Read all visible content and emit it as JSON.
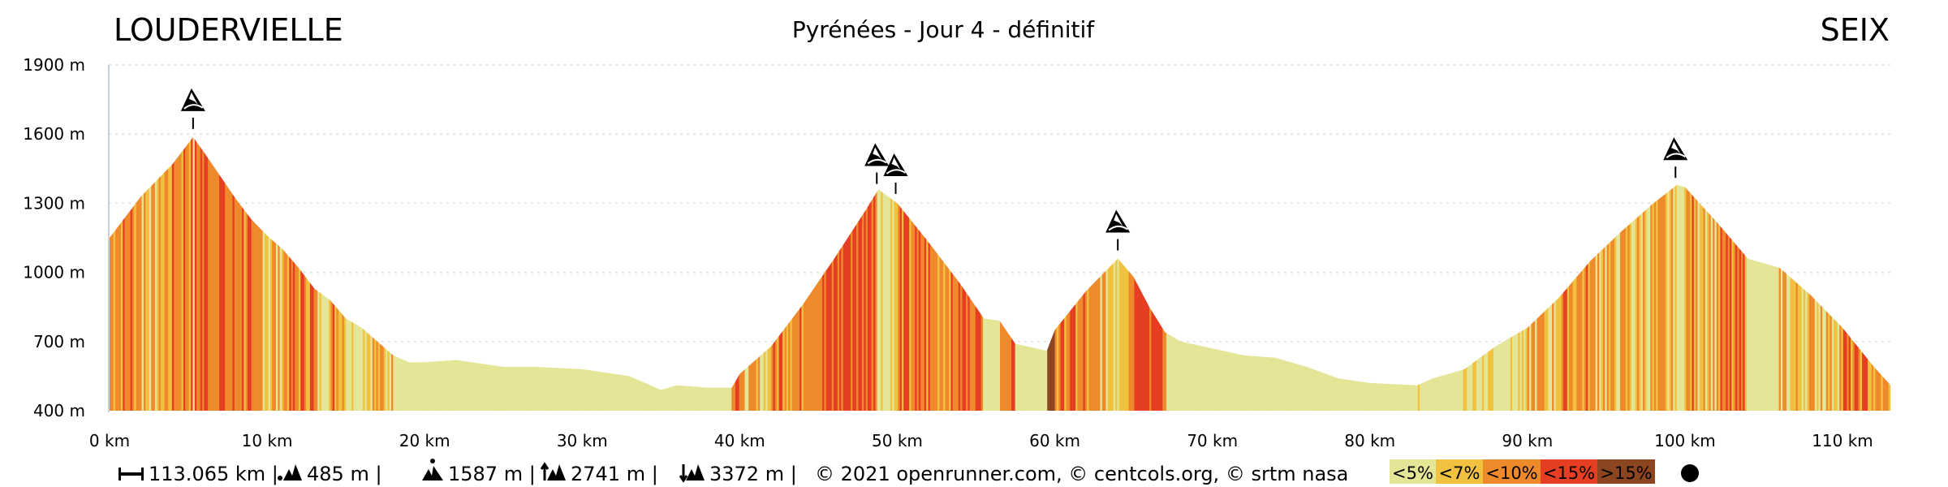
{
  "header": {
    "start": "LOUDERVIELLE",
    "title": "Pyrénées - Jour 4 - définitif",
    "end": "SEIX"
  },
  "footer": {
    "distance": "113.065 km |",
    "min_alt": "485 m |",
    "max_alt": "1587 m |",
    "ascent": "2741 m |",
    "descent": "3372 m |",
    "credits": "© 2021 openrunner.com, © centcols.org, © srtm nasa"
  },
  "legend": [
    {
      "label": "<5%",
      "color": "#e5e597"
    },
    {
      "label": "<7%",
      "color": "#f0c23f"
    },
    {
      "label": "<10%",
      "color": "#ee8a2c"
    },
    {
      "label": "<15%",
      "color": "#e53e22"
    },
    {
      "label": ">15%",
      "color": "#8b4520"
    }
  ],
  "chart_data": {
    "type": "area",
    "title": "Pyrénées - Jour 4 - définitif",
    "xlabel": "",
    "ylabel": "",
    "xlim": [
      0,
      113.065
    ],
    "ylim": [
      400,
      1900
    ],
    "x_ticks": [
      "0 km",
      "10 km",
      "20 km",
      "30 km",
      "40 km",
      "50 km",
      "60 km",
      "70 km",
      "80 km",
      "90 km",
      "100 km",
      "110 km"
    ],
    "y_ticks": [
      "400 m",
      "700 m",
      "1000 m",
      "1300 m",
      "1600 m",
      "1900 m"
    ],
    "grid": true,
    "points": [
      [
        0,
        1150
      ],
      [
        1,
        1240
      ],
      [
        2,
        1330
      ],
      [
        3,
        1400
      ],
      [
        4,
        1470
      ],
      [
        5.3,
        1587
      ],
      [
        6,
        1520
      ],
      [
        7,
        1420
      ],
      [
        8,
        1320
      ],
      [
        9,
        1230
      ],
      [
        10,
        1160
      ],
      [
        11,
        1100
      ],
      [
        12,
        1020
      ],
      [
        13,
        930
      ],
      [
        14,
        880
      ],
      [
        15,
        800
      ],
      [
        16,
        760
      ],
      [
        17,
        700
      ],
      [
        18,
        640
      ],
      [
        19,
        610
      ],
      [
        20,
        610
      ],
      [
        22,
        620
      ],
      [
        25,
        590
      ],
      [
        27,
        590
      ],
      [
        30,
        580
      ],
      [
        33,
        550
      ],
      [
        35,
        490
      ],
      [
        36,
        510
      ],
      [
        38,
        500
      ],
      [
        39.5,
        500
      ],
      [
        40,
        560
      ],
      [
        42,
        680
      ],
      [
        44,
        860
      ],
      [
        46,
        1060
      ],
      [
        48,
        1270
      ],
      [
        48.8,
        1360
      ],
      [
        50,
        1300
      ],
      [
        52,
        1130
      ],
      [
        54,
        950
      ],
      [
        55.5,
        800
      ],
      [
        56.5,
        790
      ],
      [
        57.5,
        690
      ],
      [
        59.5,
        660
      ],
      [
        60,
        750
      ],
      [
        62,
        920
      ],
      [
        64,
        1060
      ],
      [
        65,
        980
      ],
      [
        66,
        850
      ],
      [
        67,
        740
      ],
      [
        68,
        700
      ],
      [
        70,
        670
      ],
      [
        72,
        640
      ],
      [
        74,
        630
      ],
      [
        76,
        590
      ],
      [
        78,
        540
      ],
      [
        80,
        520
      ],
      [
        83,
        510
      ],
      [
        84,
        540
      ],
      [
        85,
        560
      ],
      [
        86,
        580
      ],
      [
        88,
        680
      ],
      [
        90,
        760
      ],
      [
        92,
        890
      ],
      [
        94,
        1050
      ],
      [
        96,
        1180
      ],
      [
        98,
        1300
      ],
      [
        99.5,
        1380
      ],
      [
        100,
        1370
      ],
      [
        102,
        1220
      ],
      [
        104,
        1060
      ],
      [
        106,
        1020
      ],
      [
        108,
        900
      ],
      [
        110,
        760
      ],
      [
        112,
        590
      ],
      [
        113.065,
        510
      ]
    ],
    "summits_km": [
      5.3,
      48.7,
      49.9,
      64.0,
      99.4
    ]
  }
}
